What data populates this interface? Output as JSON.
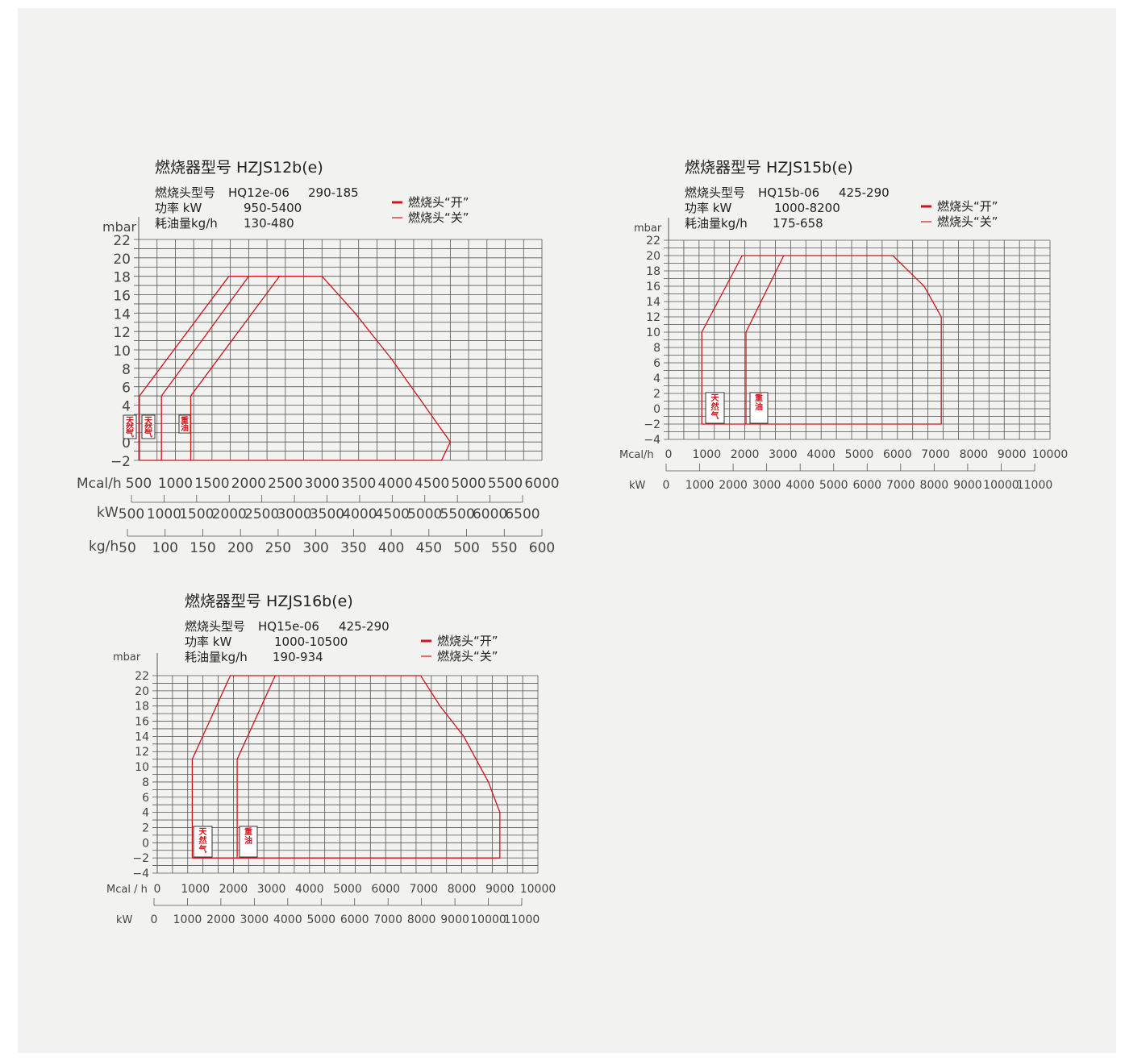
{
  "chart_data": [
    {
      "type": "line",
      "title": "燃烧器型号  HZJS12b(e)",
      "specs": [
        {
          "label": "燃烧头型号",
          "value": "HQ12e-06",
          "extra": "290-185"
        },
        {
          "label": "功率 kW",
          "value": "950-5400",
          "extra": ""
        },
        {
          "label": "耗油量kg/h",
          "value": "130-480",
          "extra": ""
        }
      ],
      "legend": [
        {
          "label": "燃烧头“开”",
          "style": "thick"
        },
        {
          "label": "燃烧头“关”",
          "style": "thin"
        }
      ],
      "ylabel": "mbar",
      "ylim": [
        -2,
        22
      ],
      "yticks": [
        -2,
        0,
        2,
        4,
        6,
        8,
        10,
        12,
        14,
        16,
        18,
        20,
        22
      ],
      "xlim": [
        500,
        6000
      ],
      "axes": [
        {
          "label": "Mcal/h",
          "ticks": [
            "500",
            "1000",
            "1500",
            "2000",
            "2500",
            "3000",
            "3500",
            "4000",
            "4500",
            "5000",
            "5500",
            "6000"
          ]
        },
        {
          "label": "kW",
          "ticks": [
            "500",
            "1000",
            "1500",
            "2000",
            "2500",
            "3000",
            "3500",
            "4000",
            "4500",
            "5000",
            "5500",
            "6000",
            "6500"
          ]
        },
        {
          "label": "kg/h",
          "ticks": [
            "50",
            "100",
            "150",
            "200",
            "250",
            "300",
            "350",
            "400",
            "450",
            "500",
            "550",
            "600"
          ]
        }
      ],
      "fuel_labels": [
        "天然气",
        "天然气",
        "重油"
      ],
      "series": [
        {
          "points": [
            [
              510,
              -2
            ],
            [
              510,
              5
            ],
            [
              1730,
              18
            ],
            [
              3000,
              18
            ],
            [
              3450,
              14
            ],
            [
              3950,
              9
            ],
            [
              4750,
              0
            ],
            [
              4630,
              -2
            ],
            [
              510,
              -2
            ]
          ]
        },
        {
          "points": [
            [
              810,
              -2
            ],
            [
              810,
              5
            ],
            [
              2000,
              18
            ]
          ]
        },
        {
          "points": [
            [
              1210,
              -2
            ],
            [
              1210,
              5
            ],
            [
              2420,
              18
            ]
          ]
        }
      ],
      "grid": true,
      "color": "#d0161c"
    },
    {
      "type": "line",
      "title": "燃烧器型号  HZJS15b(e)",
      "specs": [
        {
          "label": "燃烧头型号",
          "value": "HQ15b-06",
          "extra": "425-290"
        },
        {
          "label": "功率 kW",
          "value": "1000-8200",
          "extra": ""
        },
        {
          "label": "耗油量kg/h",
          "value": "175-658",
          "extra": ""
        }
      ],
      "legend": [
        {
          "label": "燃烧头“开”",
          "style": "thick"
        },
        {
          "label": "燃烧头“关”",
          "style": "thin"
        }
      ],
      "ylabel": "mbar",
      "ylim": [
        -4,
        22
      ],
      "yticks": [
        -4,
        -2,
        0,
        2,
        4,
        6,
        8,
        10,
        12,
        14,
        16,
        18,
        20,
        22
      ],
      "xlim": [
        0,
        10000
      ],
      "axes": [
        {
          "label": "Mcal/h",
          "ticks": [
            "0",
            "1000",
            "2000",
            "3000",
            "4000",
            "5000",
            "6000",
            "7000",
            "8000",
            "9000",
            "10000"
          ]
        },
        {
          "label": "kW",
          "ticks": [
            "0",
            "1000",
            "2000",
            "3000",
            "4000",
            "5000",
            "6000",
            "7000",
            "8000",
            "9000",
            "10000",
            "11000"
          ]
        }
      ],
      "fuel_labels": [
        "天然气",
        "重油"
      ],
      "series": [
        {
          "points": [
            [
              870,
              -2
            ],
            [
              870,
              10
            ],
            [
              1930,
              20
            ],
            [
              5880,
              20
            ],
            [
              6700,
              16
            ],
            [
              7150,
              12
            ],
            [
              7150,
              -2
            ],
            [
              870,
              -2
            ]
          ]
        },
        {
          "points": [
            [
              2030,
              -2
            ],
            [
              2030,
              10
            ],
            [
              3020,
              20
            ]
          ]
        }
      ],
      "grid": true,
      "color": "#d0161c"
    },
    {
      "type": "line",
      "title": "燃烧器型号  HZJS16b(e)",
      "specs": [
        {
          "label": "燃烧头型号",
          "value": "HQ15e-06",
          "extra": "425-290"
        },
        {
          "label": "功率 kW",
          "value": "1000-10500",
          "extra": ""
        },
        {
          "label": "耗油量kg/h",
          "value": "190-934",
          "extra": ""
        }
      ],
      "legend": [
        {
          "label": "燃烧头“开”",
          "style": "thick"
        },
        {
          "label": "燃烧头“关”",
          "style": "thin"
        }
      ],
      "ylabel": "mbar",
      "ylim": [
        -4,
        22
      ],
      "yticks": [
        -4,
        -2,
        0,
        2,
        4,
        6,
        8,
        10,
        12,
        14,
        16,
        18,
        20,
        22
      ],
      "xlim": [
        0,
        10000
      ],
      "axes": [
        {
          "label": "Mcal / h",
          "ticks": [
            "0",
            "1000",
            "2000",
            "3000",
            "4000",
            "5000",
            "6000",
            "7000",
            "8000",
            "9000",
            "10000"
          ]
        },
        {
          "label": "kW",
          "ticks": [
            "0",
            "1000",
            "2000",
            "3000",
            "4000",
            "5000",
            "6000",
            "7000",
            "8000",
            "9000",
            "10000",
            "11000"
          ]
        }
      ],
      "fuel_labels": [
        "天然气",
        "重油"
      ],
      "series": [
        {
          "points": [
            [
              920,
              -2
            ],
            [
              920,
              11
            ],
            [
              1920,
              22
            ],
            [
              6920,
              22
            ],
            [
              7430,
              18
            ],
            [
              8050,
              14
            ],
            [
              8700,
              8
            ],
            [
              9000,
              4
            ],
            [
              9000,
              -2
            ],
            [
              920,
              -2
            ]
          ]
        },
        {
          "points": [
            [
              2100,
              -2
            ],
            [
              2100,
              11
            ],
            [
              3100,
              22
            ]
          ]
        }
      ],
      "grid": true,
      "color": "#d0161c"
    }
  ]
}
